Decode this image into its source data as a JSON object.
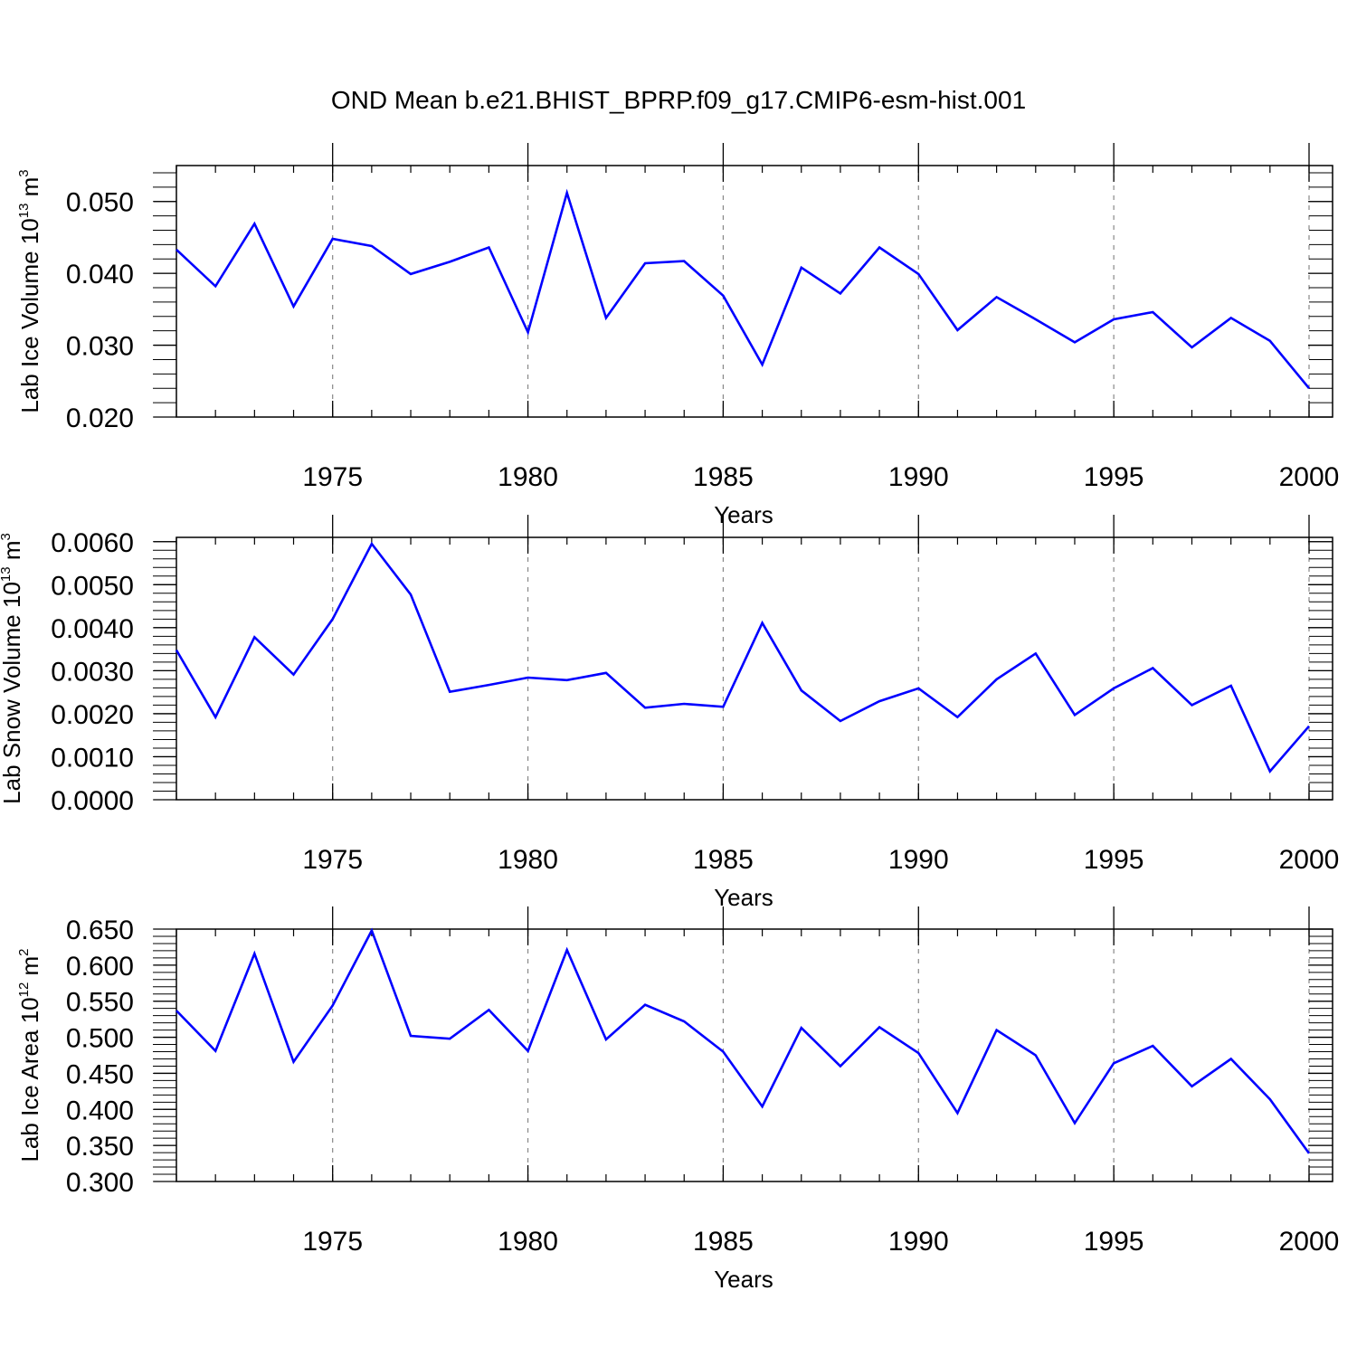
{
  "title": "OND Mean b.e21.BHIST_BPRP.f09_g17.CMIP6-esm-hist.001",
  "colors": {
    "line": "#0000ff",
    "frame": "#000000",
    "grid": "#888888"
  },
  "chart_data": [
    {
      "type": "line",
      "xlabel": "Years",
      "ylabel": {
        "main": "Lab Ice Volume 10",
        "exp": "13",
        "unit": " m",
        "unit_exp": "3"
      },
      "xlim": [
        1971,
        2000
      ],
      "ylim": [
        0.02,
        0.055
      ],
      "xticks": [
        1975,
        1980,
        1985,
        1990,
        1995,
        2000
      ],
      "xtick_labels": [
        "1975",
        "1980",
        "1985",
        "1990",
        "1995",
        "2000"
      ],
      "yticks": [
        0.02,
        0.03,
        0.04,
        0.05
      ],
      "ytick_labels": [
        "0.020",
        "0.030",
        "0.040",
        "0.050"
      ],
      "grid": "vertical dashed at major x ticks",
      "series": [
        {
          "x": [
            1971,
            1972,
            1973,
            1974,
            1975,
            1976,
            1977,
            1978,
            1979,
            1980,
            1981,
            1982,
            1983,
            1984,
            1985,
            1986,
            1987,
            1988,
            1989,
            1990,
            1991,
            1992,
            1993,
            1994,
            1995,
            1996,
            1997,
            1998,
            1999,
            2000
          ],
          "values": [
            0.0433,
            0.0382,
            0.0469,
            0.0354,
            0.0448,
            0.0438,
            0.0399,
            0.0416,
            0.0436,
            0.0318,
            0.0512,
            0.0338,
            0.0414,
            0.0417,
            0.0369,
            0.0273,
            0.0408,
            0.0372,
            0.0436,
            0.0399,
            0.0321,
            0.0367,
            0.0336,
            0.0304,
            0.0336,
            0.0346,
            0.0297,
            0.0338,
            0.0306,
            0.024
          ]
        }
      ]
    },
    {
      "type": "line",
      "xlabel": "Years",
      "ylabel": {
        "main": "Lab Snow Volume 10",
        "exp": "13",
        "unit": " m",
        "unit_exp": "3"
      },
      "xlim": [
        1971,
        2000
      ],
      "ylim": [
        0.0,
        0.0061
      ],
      "xticks": [
        1975,
        1980,
        1985,
        1990,
        1995,
        2000
      ],
      "xtick_labels": [
        "1975",
        "1980",
        "1985",
        "1990",
        "1995",
        "2000"
      ],
      "yticks": [
        0.0,
        0.001,
        0.002,
        0.003,
        0.004,
        0.005,
        0.006
      ],
      "ytick_labels": [
        "0.0000",
        "0.0010",
        "0.0020",
        "0.0030",
        "0.0040",
        "0.0050",
        "0.0060"
      ],
      "grid": "vertical dashed at major x ticks",
      "series": [
        {
          "x": [
            1971,
            1972,
            1973,
            1974,
            1975,
            1976,
            1977,
            1978,
            1979,
            1980,
            1981,
            1982,
            1983,
            1984,
            1985,
            1986,
            1987,
            1988,
            1989,
            1990,
            1991,
            1992,
            1993,
            1994,
            1995,
            1996,
            1997,
            1998,
            1999,
            2000
          ],
          "values": [
            0.00348,
            0.00192,
            0.00378,
            0.00291,
            0.0042,
            0.00595,
            0.00477,
            0.00251,
            0.00267,
            0.00284,
            0.00278,
            0.00295,
            0.00214,
            0.00223,
            0.00216,
            0.00411,
            0.00254,
            0.00183,
            0.00229,
            0.00259,
            0.00192,
            0.0028,
            0.0034,
            0.00197,
            0.00259,
            0.00306,
            0.0022,
            0.00265,
            0.00066,
            0.00171
          ]
        }
      ]
    },
    {
      "type": "line",
      "xlabel": "Years",
      "ylabel": {
        "main": "Lab Ice Area 10",
        "exp": "12",
        "unit": " m",
        "unit_exp": "2"
      },
      "xlim": [
        1971,
        2000
      ],
      "ylim": [
        0.3,
        0.65
      ],
      "xticks": [
        1975,
        1980,
        1985,
        1990,
        1995,
        2000
      ],
      "xtick_labels": [
        "1975",
        "1980",
        "1985",
        "1990",
        "1995",
        "2000"
      ],
      "yticks": [
        0.3,
        0.35,
        0.4,
        0.45,
        0.5,
        0.55,
        0.6,
        0.65
      ],
      "ytick_labels": [
        "0.300",
        "0.350",
        "0.400",
        "0.450",
        "0.500",
        "0.550",
        "0.600",
        "0.650"
      ],
      "grid": "vertical dashed at major x ticks",
      "series": [
        {
          "x": [
            1971,
            1972,
            1973,
            1974,
            1975,
            1976,
            1977,
            1978,
            1979,
            1980,
            1981,
            1982,
            1983,
            1984,
            1985,
            1986,
            1987,
            1988,
            1989,
            1990,
            1991,
            1992,
            1993,
            1994,
            1995,
            1996,
            1997,
            1998,
            1999,
            2000
          ],
          "values": [
            0.537,
            0.481,
            0.616,
            0.466,
            0.544,
            0.648,
            0.502,
            0.498,
            0.538,
            0.481,
            0.621,
            0.497,
            0.545,
            0.522,
            0.48,
            0.404,
            0.513,
            0.46,
            0.514,
            0.478,
            0.395,
            0.51,
            0.475,
            0.381,
            0.464,
            0.488,
            0.432,
            0.47,
            0.414,
            0.339
          ]
        }
      ]
    }
  ]
}
